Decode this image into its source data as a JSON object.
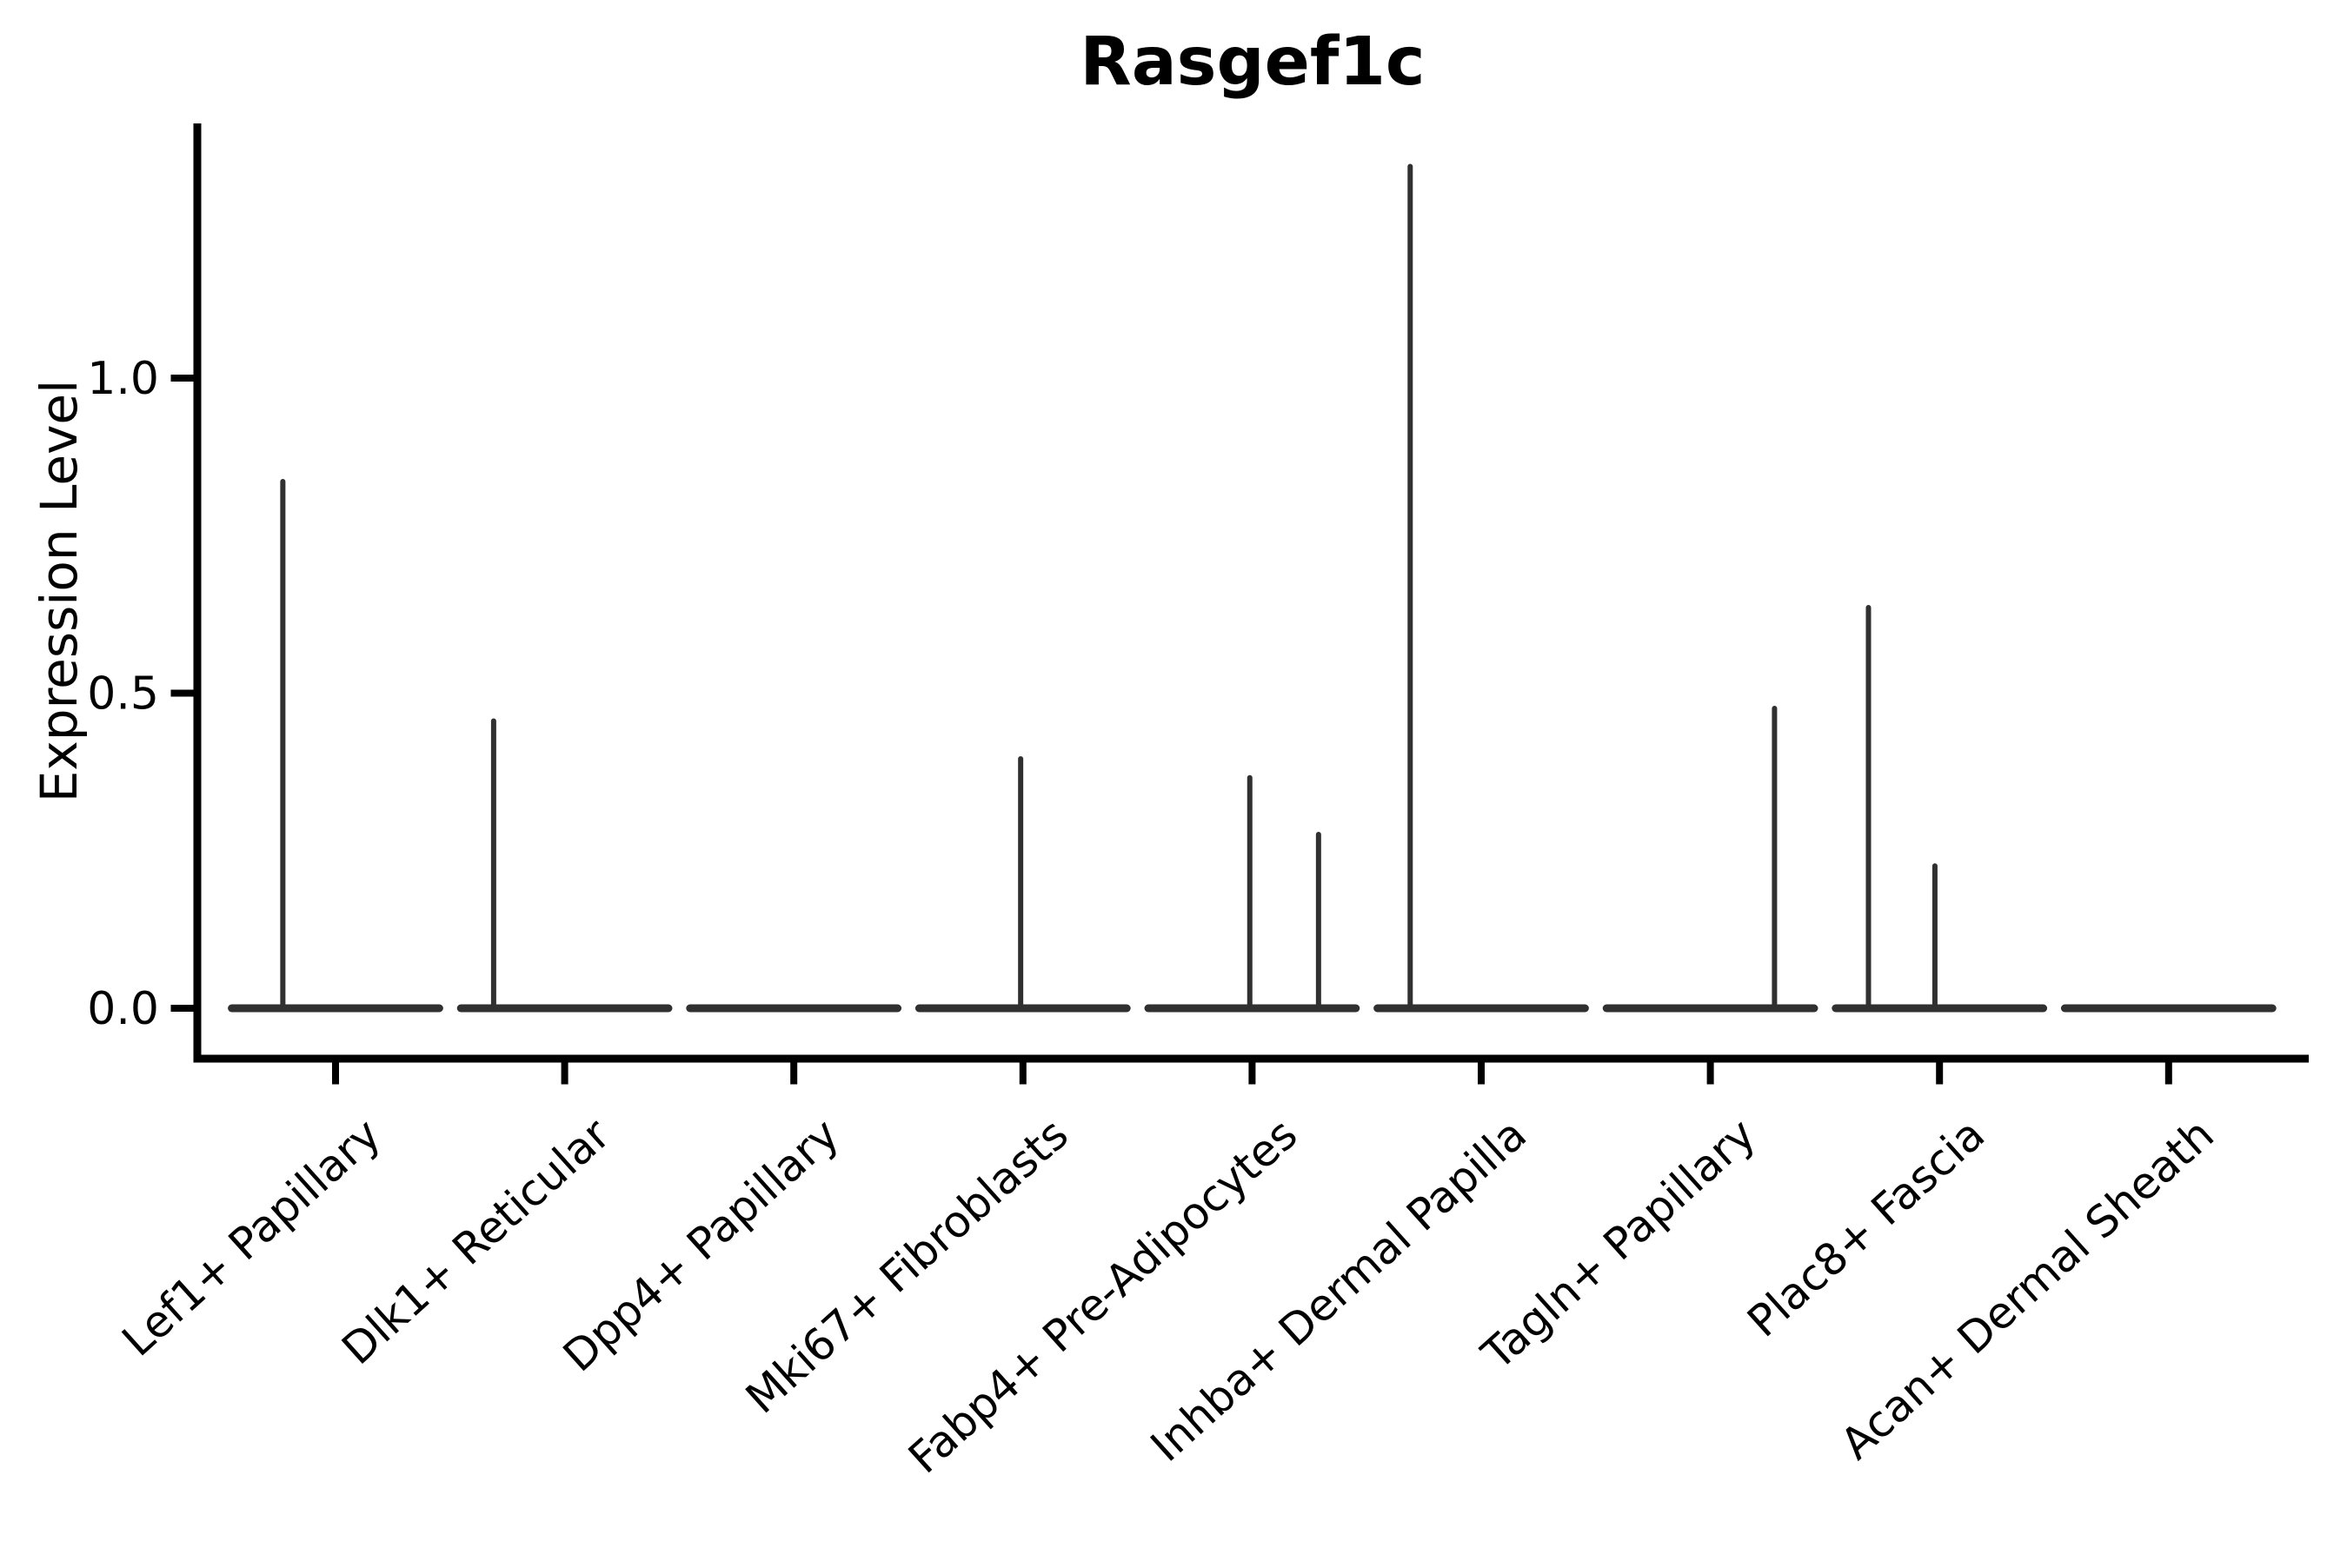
{
  "figure": {
    "background": "#ffffff"
  },
  "chart_data": {
    "type": "violin",
    "title": "Rasgef1c",
    "xlabel": "",
    "ylabel": "Expression Level",
    "yticks": [
      0.0,
      0.5,
      1.0
    ],
    "ytick_labels": [
      "0.0",
      "0.5",
      "1.0"
    ],
    "ylim": [
      -0.08,
      1.4
    ],
    "grid": false,
    "legend": "none",
    "line_color": "#303030",
    "axis_color": "#000000",
    "text_color": "#000000",
    "categories": [
      "Lef1+ Papillary",
      "Dlk1+ Reticular",
      "Dpp4+ Papillary",
      "Mki67+ Fibroblasts",
      "Fabp4+ Pre-Adipocytes",
      "Inhba+ Dermal Papilla",
      "Tagln+ Papillary",
      "Plac8+ Fascia",
      "Acan+ Dermal Sheath"
    ],
    "violins": [
      {
        "category": "Lef1+ Papillary",
        "base_value": 0.0,
        "base_halfwidth": 0.47,
        "spikes": [
          {
            "offset": -0.23,
            "max": 0.84
          }
        ]
      },
      {
        "category": "Dlk1+ Reticular",
        "base_value": 0.0,
        "base_halfwidth": 0.47,
        "spikes": [
          {
            "offset": -0.31,
            "max": 0.46
          }
        ]
      },
      {
        "category": "Dpp4+ Papillary",
        "base_value": 0.0,
        "base_halfwidth": 0.47,
        "spikes": []
      },
      {
        "category": "Mki67+ Fibroblasts",
        "base_value": 0.0,
        "base_halfwidth": 0.47,
        "spikes": [
          {
            "offset": -0.01,
            "max": 0.4
          }
        ]
      },
      {
        "category": "Fabp4+ Pre-Adipocytes",
        "base_value": 0.0,
        "base_halfwidth": 0.47,
        "spikes": [
          {
            "offset": -0.01,
            "max": 0.37
          },
          {
            "offset": 0.29,
            "max": 0.28
          }
        ]
      },
      {
        "category": "Inhba+ Dermal Papilla",
        "base_value": 0.0,
        "base_halfwidth": 0.47,
        "spikes": [
          {
            "offset": -0.31,
            "max": 1.34
          }
        ]
      },
      {
        "category": "Tagln+ Papillary",
        "base_value": 0.0,
        "base_halfwidth": 0.47,
        "spikes": [
          {
            "offset": 0.28,
            "max": 0.48
          }
        ]
      },
      {
        "category": "Plac8+ Fascia",
        "base_value": 0.0,
        "base_halfwidth": 0.47,
        "spikes": [
          {
            "offset": -0.31,
            "max": 0.64
          },
          {
            "offset": -0.02,
            "max": 0.23
          }
        ]
      },
      {
        "category": "Acan+ Dermal Sheath",
        "base_value": 0.0,
        "base_halfwidth": 0.47,
        "spikes": []
      }
    ]
  }
}
